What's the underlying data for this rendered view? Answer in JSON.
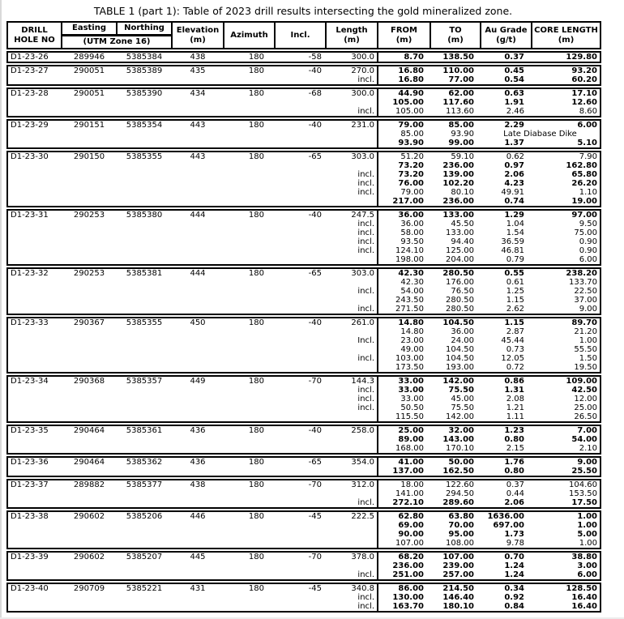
{
  "title": "TABLE 1 (part 1): Table of 2023 drill results intersecting the gold mineralized zone.",
  "table": {
    "headers": {
      "hole1": "DRILL",
      "hole2": "HOLE NO",
      "easting": "Easting",
      "northing": "Northing",
      "utm": "(UTM Zone 16)",
      "elevation1": "Elevation",
      "elevation2": "(m)",
      "azimuth": "Azimuth",
      "incl": "Incl.",
      "length1": "Length",
      "length2": "(m)",
      "from1": "FROM",
      "from2": "(m)",
      "to1": "TO",
      "to2": "(m)",
      "grade1": "Au Grade",
      "grade2": "(g/t)",
      "core1": "CORE LENGTH",
      "core2": "(m)"
    },
    "groups": [
      {
        "hole": "D1-23-26",
        "easting": "289946",
        "northing": "5385384",
        "elevation": "438",
        "azimuth": "180",
        "incl": "-58",
        "length": "300.0",
        "intervals": [
          {
            "label": "",
            "from": "8.70",
            "to": "138.50",
            "grade": "0.37",
            "core": "129.80",
            "bold": true
          }
        ]
      },
      {
        "hole": "D1-23-27",
        "easting": "290051",
        "northing": "5385389",
        "elevation": "435",
        "azimuth": "180",
        "incl": "-40",
        "length": "270.0",
        "intervals": [
          {
            "label": "",
            "from": "16.80",
            "to": "110.00",
            "grade": "0.45",
            "core": "93.20",
            "bold": true
          },
          {
            "label": "incl.",
            "from": "16.80",
            "to": "77.00",
            "grade": "0.54",
            "core": "60.20",
            "bold": true
          }
        ]
      },
      {
        "hole": "D1-23-28",
        "easting": "290051",
        "northing": "5385390",
        "elevation": "434",
        "azimuth": "180",
        "incl": "-68",
        "length": "300.0",
        "intervals": [
          {
            "label": "",
            "from": "44.90",
            "to": "62.00",
            "grade": "0.63",
            "core": "17.10",
            "bold": true
          },
          {
            "label": "",
            "from": "105.00",
            "to": "117.60",
            "grade": "1.91",
            "core": "12.60",
            "bold": true
          },
          {
            "label": "incl.",
            "from": "105.00",
            "to": "113.60",
            "grade": "2.46",
            "core": "8.60",
            "bold": false
          }
        ]
      },
      {
        "hole": "D1-23-29",
        "easting": "290151",
        "northing": "5385354",
        "elevation": "443",
        "azimuth": "180",
        "incl": "-40",
        "length": "231.0",
        "intervals": [
          {
            "label": "",
            "from": "79.00",
            "to": "85.00",
            "grade": "2.29",
            "core": "6.00",
            "bold": true
          },
          {
            "label": "",
            "from": "85.00",
            "to": "93.90",
            "note": "Late Diabase Dike",
            "bold": false
          },
          {
            "label": "",
            "from": "93.90",
            "to": "99.00",
            "grade": "1.37",
            "core": "5.10",
            "bold": true
          }
        ]
      },
      {
        "hole": "D1-23-30",
        "easting": "290150",
        "northing": "5385355",
        "elevation": "443",
        "azimuth": "180",
        "incl": "-65",
        "length": "303.0",
        "intervals": [
          {
            "label": "",
            "from": "51.20",
            "to": "59.10",
            "grade": "0.62",
            "core": "7.90",
            "bold": false
          },
          {
            "label": "",
            "from": "73.20",
            "to": "236.00",
            "grade": "0.97",
            "core": "162.80",
            "bold": true
          },
          {
            "label": "incl.",
            "from": "73.20",
            "to": "139.00",
            "grade": "2.06",
            "core": "65.80",
            "bold": true
          },
          {
            "label": "incl.",
            "from": "76.00",
            "to": "102.20",
            "grade": "4.23",
            "core": "26.20",
            "bold": true
          },
          {
            "label": "incl.",
            "from": "79.00",
            "to": "80.10",
            "grade": "49.91",
            "core": "1.10",
            "bold": false
          },
          {
            "label": "",
            "from": "217.00",
            "to": "236.00",
            "grade": "0.74",
            "core": "19.00",
            "bold": true
          }
        ]
      },
      {
        "hole": "D1-23-31",
        "easting": "290253",
        "northing": "5385380",
        "elevation": "444",
        "azimuth": "180",
        "incl": "-40",
        "length": "247.5",
        "intervals": [
          {
            "label": "",
            "from": "36.00",
            "to": "133.00",
            "grade": "1.29",
            "core": "97.00",
            "bold": true
          },
          {
            "label": "incl.",
            "from": "36.00",
            "to": "45.50",
            "grade": "1.04",
            "core": "9.50",
            "bold": false
          },
          {
            "label": "incl.",
            "from": "58.00",
            "to": "133.00",
            "grade": "1.54",
            "core": "75.00",
            "bold": false
          },
          {
            "label": "incl.",
            "from": "93.50",
            "to": "94.40",
            "grade": "36.59",
            "core": "0.90",
            "bold": false
          },
          {
            "label": "incl.",
            "from": "124.10",
            "to": "125.00",
            "grade": "46.81",
            "core": "0.90",
            "bold": false
          },
          {
            "label": "",
            "from": "198.00",
            "to": "204.00",
            "grade": "0.79",
            "core": "6.00",
            "bold": false
          }
        ]
      },
      {
        "hole": "D1-23-32",
        "easting": "290253",
        "northing": "5385381",
        "elevation": "444",
        "azimuth": "180",
        "incl": "-65",
        "length": "303.0",
        "intervals": [
          {
            "label": "",
            "from": "42.30",
            "to": "280.50",
            "grade": "0.55",
            "core": "238.20",
            "bold": true
          },
          {
            "label": "",
            "from": "42.30",
            "to": "176.00",
            "grade": "0.61",
            "core": "133.70",
            "bold": false
          },
          {
            "label": "incl.",
            "from": "54.00",
            "to": "76.50",
            "grade": "1.25",
            "core": "22.50",
            "bold": false
          },
          {
            "label": "",
            "from": "243.50",
            "to": "280.50",
            "grade": "1.15",
            "core": "37.00",
            "bold": false
          },
          {
            "label": "incl.",
            "from": "271.50",
            "to": "280.50",
            "grade": "2.62",
            "core": "9.00",
            "bold": false
          }
        ]
      },
      {
        "hole": "D1-23-33",
        "easting": "290367",
        "northing": "5385355",
        "elevation": "450",
        "azimuth": "180",
        "incl": "-40",
        "length": "261.0",
        "intervals": [
          {
            "label": "",
            "from": "14.80",
            "to": "104.50",
            "grade": "1.15",
            "core": "89.70",
            "bold": true
          },
          {
            "label": "",
            "from": "14.80",
            "to": "36.00",
            "grade": "2.87",
            "core": "21.20",
            "bold": false
          },
          {
            "label": "Incl.",
            "from": "23.00",
            "to": "24.00",
            "grade": "45.44",
            "core": "1.00",
            "bold": false
          },
          {
            "label": "",
            "from": "49.00",
            "to": "104.50",
            "grade": "0.73",
            "core": "55.50",
            "bold": false
          },
          {
            "label": "incl.",
            "from": "103.00",
            "to": "104.50",
            "grade": "12.05",
            "core": "1.50",
            "bold": false
          },
          {
            "label": "",
            "from": "173.50",
            "to": "193.00",
            "grade": "0.72",
            "core": "19.50",
            "bold": false
          }
        ]
      },
      {
        "hole": "D1-23-34",
        "easting": "290368",
        "northing": "5385357",
        "elevation": "449",
        "azimuth": "180",
        "incl": "-70",
        "length": "144.3",
        "intervals": [
          {
            "label": "",
            "from": "33.00",
            "to": "142.00",
            "grade": "0.86",
            "core": "109.00",
            "bold": true
          },
          {
            "label": "incl.",
            "from": "33.00",
            "to": "75.50",
            "grade": "1.31",
            "core": "42.50",
            "bold": true
          },
          {
            "label": "incl.",
            "from": "33.00",
            "to": "45.00",
            "grade": "2.08",
            "core": "12.00",
            "bold": false
          },
          {
            "label": "incl.",
            "from": "50.50",
            "to": "75.50",
            "grade": "1.21",
            "core": "25.00",
            "bold": false
          },
          {
            "label": "",
            "from": "115.50",
            "to": "142.00",
            "grade": "1.11",
            "core": "26.50",
            "bold": false
          }
        ]
      },
      {
        "hole": "D1-23-35",
        "easting": "290464",
        "northing": "5385361",
        "elevation": "436",
        "azimuth": "180",
        "incl": "-40",
        "length": "258.0",
        "intervals": [
          {
            "label": "",
            "from": "25.00",
            "to": "32.00",
            "grade": "1.23",
            "core": "7.00",
            "bold": true
          },
          {
            "label": "",
            "from": "89.00",
            "to": "143.00",
            "grade": "0.80",
            "core": "54.00",
            "bold": true
          },
          {
            "label": "",
            "from": "168.00",
            "to": "170.10",
            "grade": "2.15",
            "core": "2.10",
            "bold": false
          }
        ]
      },
      {
        "hole": "D1-23-36",
        "easting": "290464",
        "northing": "5385362",
        "elevation": "436",
        "azimuth": "180",
        "incl": "-65",
        "length": "354.0",
        "intervals": [
          {
            "label": "",
            "from": "41.00",
            "to": "50.00",
            "grade": "1.76",
            "core": "9.00",
            "bold": true
          },
          {
            "label": "",
            "from": "137.00",
            "to": "162.50",
            "grade": "0.80",
            "core": "25.50",
            "bold": true
          }
        ]
      },
      {
        "hole": "D1-23-37",
        "easting": "289882",
        "northing": "5385377",
        "elevation": "438",
        "azimuth": "180",
        "incl": "-70",
        "length": "312.0",
        "intervals": [
          {
            "label": "",
            "from": "18.00",
            "to": "122.60",
            "grade": "0.37",
            "core": "104.60",
            "bold": false
          },
          {
            "label": "",
            "from": "141.00",
            "to": "294.50",
            "grade": "0.44",
            "core": "153.50",
            "bold": false
          },
          {
            "label": "incl.",
            "from": "272.10",
            "to": "289.60",
            "grade": "2.06",
            "core": "17.50",
            "bold": true
          }
        ]
      },
      {
        "hole": "D1-23-38",
        "easting": "290602",
        "northing": "5385206",
        "elevation": "446",
        "azimuth": "180",
        "incl": "-45",
        "length": "222.5",
        "intervals": [
          {
            "label": "",
            "from": "62.80",
            "to": "63.80",
            "grade": "1636.00",
            "core": "1.00",
            "bold": true
          },
          {
            "label": "",
            "from": "69.00",
            "to": "70.00",
            "grade": "697.00",
            "core": "1.00",
            "bold": true
          },
          {
            "label": "",
            "from": "90.00",
            "to": "95.00",
            "grade": "1.73",
            "core": "5.00",
            "bold": true
          },
          {
            "label": "",
            "from": "107.00",
            "to": "108.00",
            "grade": "9.78",
            "core": "1.00",
            "bold": false
          }
        ]
      },
      {
        "hole": "D1-23-39",
        "easting": "290602",
        "northing": "5385207",
        "elevation": "445",
        "azimuth": "180",
        "incl": "-70",
        "length": "378.0",
        "intervals": [
          {
            "label": "",
            "from": "68.20",
            "to": "107.00",
            "grade": "0.70",
            "core": "38.80",
            "bold": true
          },
          {
            "label": "",
            "from": "236.00",
            "to": "239.00",
            "grade": "1.24",
            "core": "3.00",
            "bold": true
          },
          {
            "label": "incl.",
            "from": "251.00",
            "to": "257.00",
            "grade": "1.24",
            "core": "6.00",
            "bold": true
          }
        ]
      },
      {
        "hole": "D1-23-40",
        "easting": "290709",
        "northing": "5385221",
        "elevation": "431",
        "azimuth": "180",
        "incl": "-45",
        "length": "340.8",
        "intervals": [
          {
            "label": "",
            "from": "86.00",
            "to": "214.50",
            "grade": "0.34",
            "core": "128.50",
            "bold": true
          },
          {
            "label": "incl.",
            "from": "130.00",
            "to": "146.40",
            "grade": "0.92",
            "core": "16.40",
            "bold": true
          },
          {
            "label": "incl.",
            "from": "163.70",
            "to": "180.10",
            "grade": "0.84",
            "core": "16.40",
            "bold": true
          }
        ]
      }
    ]
  }
}
